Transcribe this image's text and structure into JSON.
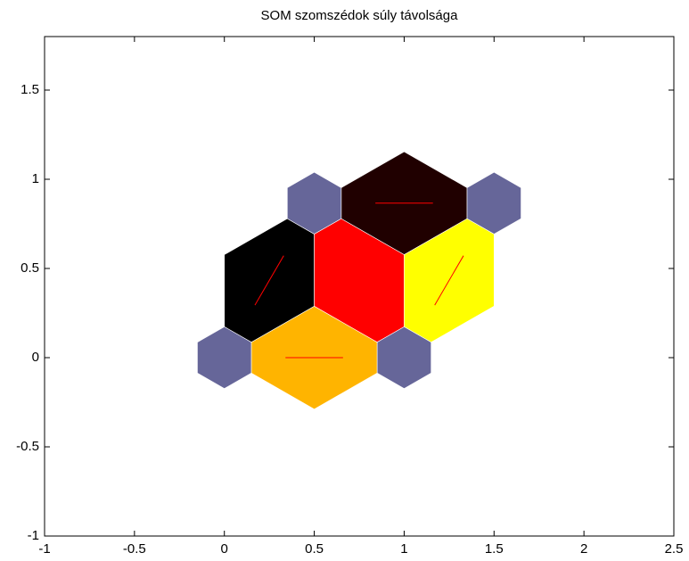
{
  "chart_data": {
    "type": "som-neighbor-distances",
    "title": "SOM szomszédok súly távolsága",
    "neuron_color": "#666699",
    "line_color": "#ff0000",
    "neurons": [
      {
        "x": 0,
        "y": 0
      },
      {
        "x": 1,
        "y": 0
      },
      {
        "x": 0.5,
        "y": 0.866
      },
      {
        "x": 1.5,
        "y": 0.866
      }
    ],
    "links": [
      {
        "from": 0,
        "to": 1,
        "color": "#ffb400"
      },
      {
        "from": 0,
        "to": 2,
        "color": "#000000"
      },
      {
        "from": 1,
        "to": 2,
        "color": "#ff0000"
      },
      {
        "from": 1,
        "to": 3,
        "color": "#ffff00"
      },
      {
        "from": 2,
        "to": 3,
        "color": "#200000"
      }
    ],
    "xlim": [
      -1,
      2.5
    ],
    "ylim": [
      -1,
      1.8
    ],
    "xticks": [
      -1,
      -0.5,
      0,
      0.5,
      1,
      1.5,
      2,
      2.5
    ],
    "yticks": [
      -1,
      -0.5,
      0,
      0.5,
      1,
      1.5
    ],
    "grid": false
  }
}
